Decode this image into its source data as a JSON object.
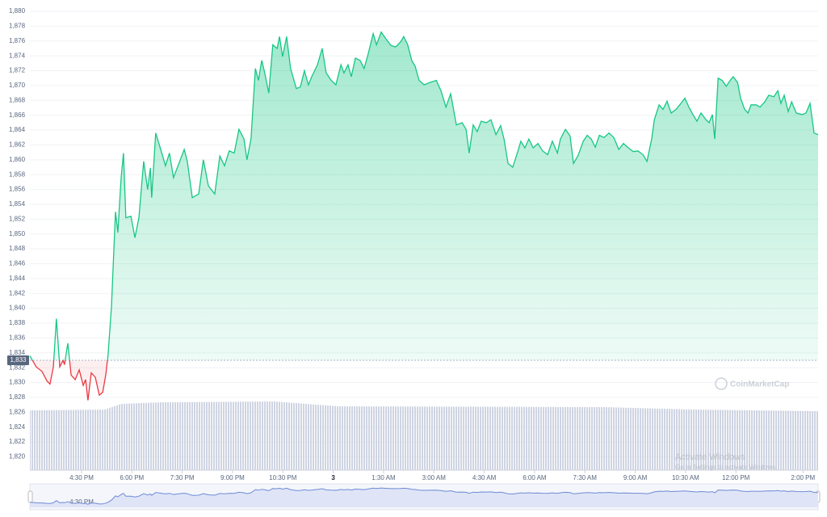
{
  "chart_data": {
    "type": "line",
    "x": [
      14.96,
      15.15,
      15.32,
      15.47,
      15.56,
      15.66,
      15.75,
      15.85,
      15.95,
      15.99,
      16.09,
      16.19,
      16.31,
      16.43,
      16.55,
      16.62,
      16.69,
      16.79,
      16.91,
      17.03,
      17.13,
      17.22,
      17.29,
      17.39,
      17.51,
      17.58,
      17.68,
      17.75,
      17.82,
      17.97,
      18.09,
      18.21,
      18.35,
      18.47,
      18.55,
      18.59,
      18.71,
      18.86,
      19.0,
      19.12,
      19.24,
      19.41,
      19.56,
      19.65,
      19.8,
      19.99,
      20.13,
      20.28,
      20.47,
      20.62,
      20.76,
      20.9,
      21.05,
      21.19,
      21.34,
      21.43,
      21.55,
      21.68,
      21.77,
      21.87,
      21.96,
      22.08,
      22.2,
      22.33,
      22.4,
      22.49,
      22.61,
      22.73,
      22.9,
      23.02,
      23.14,
      23.26,
      23.36,
      23.53,
      23.67,
      23.79,
      23.94,
      24.08,
      24.23,
      24.32,
      24.44,
      24.54,
      24.66,
      24.8,
      24.92,
      25.02,
      25.19,
      25.29,
      25.43,
      25.57,
      25.72,
      25.86,
      26.01,
      26.1,
      26.22,
      26.34,
      26.44,
      26.56,
      26.71,
      26.87,
      27.07,
      27.21,
      27.36,
      27.5,
      27.67,
      27.84,
      27.96,
      28.05,
      28.17,
      28.29,
      28.41,
      28.56,
      28.7,
      28.85,
      28.99,
      29.09,
      29.21,
      29.35,
      29.5,
      29.59,
      29.71,
      29.83,
      29.96,
      30.1,
      30.24,
      30.39,
      30.53,
      30.68,
      30.77,
      30.92,
      31.06,
      31.16,
      31.3,
      31.45,
      31.57,
      31.69,
      31.81,
      31.93,
      32.07,
      32.22,
      32.36,
      32.51,
      32.65,
      32.8,
      32.94,
      33.08,
      33.23,
      33.35,
      33.49,
      33.57,
      33.71,
      33.83,
      33.95,
      34.07,
      34.22,
      34.36,
      34.48,
      34.6,
      34.72,
      34.84,
      34.96,
      35.11,
      35.2,
      35.3,
      35.37,
      35.47,
      35.59,
      35.71,
      35.83,
      35.92,
      36.05,
      36.14,
      36.26,
      36.36,
      36.45,
      36.6,
      36.72,
      36.86,
      36.98,
      37.13,
      37.25,
      37.34,
      37.44,
      37.56,
      37.66,
      37.8,
      37.97,
      38.09,
      38.21,
      38.33,
      38.45
    ],
    "values": [
      1833.6,
      1832.1,
      1831.5,
      1830.2,
      1829.8,
      1832.1,
      1838.6,
      1832.1,
      1833.0,
      1832.4,
      1835.3,
      1831.0,
      1830.4,
      1831.7,
      1829.6,
      1830.4,
      1827.6,
      1831.3,
      1830.7,
      1828.3,
      1828.7,
      1831.0,
      1833.7,
      1840.2,
      1853.0,
      1850.2,
      1857.6,
      1860.9,
      1852.2,
      1852.4,
      1849.5,
      1852.2,
      1859.8,
      1856.0,
      1858.9,
      1854.9,
      1863.6,
      1861.4,
      1859.2,
      1860.9,
      1857.6,
      1859.6,
      1861.4,
      1859.8,
      1854.9,
      1855.4,
      1860.0,
      1856.5,
      1855.4,
      1860.5,
      1859.2,
      1861.2,
      1860.9,
      1864.1,
      1862.8,
      1860.0,
      1862.8,
      1872.3,
      1870.7,
      1873.4,
      1871.7,
      1869.0,
      1875.5,
      1875.0,
      1876.6,
      1873.9,
      1876.6,
      1872.3,
      1869.6,
      1869.8,
      1872.0,
      1870.1,
      1871.2,
      1872.8,
      1875.0,
      1871.7,
      1870.7,
      1870.1,
      1872.8,
      1871.7,
      1872.8,
      1871.2,
      1873.7,
      1873.4,
      1872.3,
      1873.9,
      1877.0,
      1875.5,
      1877.2,
      1876.3,
      1875.4,
      1875.2,
      1875.9,
      1876.6,
      1875.5,
      1873.4,
      1872.6,
      1870.7,
      1870.1,
      1870.4,
      1870.7,
      1869.3,
      1867.1,
      1868.9,
      1864.7,
      1865.0,
      1864.1,
      1860.9,
      1864.7,
      1863.8,
      1865.2,
      1865.0,
      1865.4,
      1863.4,
      1864.6,
      1862.8,
      1859.5,
      1859.0,
      1861.1,
      1862.5,
      1861.6,
      1862.8,
      1861.6,
      1862.2,
      1861.2,
      1860.7,
      1862.5,
      1860.9,
      1862.8,
      1864.1,
      1863.2,
      1859.5,
      1860.6,
      1862.5,
      1863.3,
      1862.8,
      1861.7,
      1863.3,
      1863.0,
      1863.6,
      1863.0,
      1861.4,
      1862.2,
      1861.6,
      1861.1,
      1861.2,
      1860.7,
      1859.8,
      1862.8,
      1865.4,
      1867.4,
      1866.8,
      1867.9,
      1866.3,
      1866.8,
      1867.6,
      1868.3,
      1867.1,
      1866.1,
      1865.2,
      1866.3,
      1865.4,
      1865.0,
      1866.1,
      1862.8,
      1871.0,
      1870.7,
      1869.9,
      1870.7,
      1871.2,
      1870.4,
      1868.3,
      1866.8,
      1866.3,
      1867.4,
      1867.4,
      1867.1,
      1867.8,
      1868.7,
      1868.5,
      1869.3,
      1867.6,
      1868.7,
      1866.5,
      1867.8,
      1866.3,
      1866.1,
      1866.3,
      1867.6,
      1863.6,
      1863.4
    ],
    "color_up": "#16c784",
    "color_down": "#ea3943",
    "baseline": {
      "value": 1833,
      "label": "1,833"
    },
    "xlim": [
      14.96,
      38.45
    ],
    "xticks": [
      {
        "value": 16.5,
        "label": "4:30 PM"
      },
      {
        "value": 18,
        "label": "6:00 PM"
      },
      {
        "value": 19.5,
        "label": "7:30 PM"
      },
      {
        "value": 21,
        "label": "9:00 PM"
      },
      {
        "value": 22.5,
        "label": "10:30 PM"
      },
      {
        "value": 24,
        "label": "3"
      },
      {
        "value": 25.5,
        "label": "1:30 AM"
      },
      {
        "value": 27,
        "label": "3:00 AM"
      },
      {
        "value": 28.5,
        "label": "4:30 AM"
      },
      {
        "value": 30,
        "label": "6:00 AM"
      },
      {
        "value": 31.5,
        "label": "7:30 AM"
      },
      {
        "value": 33,
        "label": "9:00 AM"
      },
      {
        "value": 34.5,
        "label": "10:30 AM"
      },
      {
        "value": 36,
        "label": "12:00 PM"
      },
      {
        "value": 38,
        "label": "2:00 PM"
      }
    ],
    "ylim": [
      1818.2,
      1880
    ],
    "yticks": [
      {
        "value": 1820,
        "label": "1,820"
      },
      {
        "value": 1822,
        "label": "1,822"
      },
      {
        "value": 1824,
        "label": "1,824"
      },
      {
        "value": 1826,
        "label": "1,826"
      },
      {
        "value": 1828,
        "label": "1,828"
      },
      {
        "value": 1830,
        "label": "1,830"
      },
      {
        "value": 1832,
        "label": "1,832"
      },
      {
        "value": 1834,
        "label": "1,834"
      },
      {
        "value": 1836,
        "label": "1,836"
      },
      {
        "value": 1838,
        "label": "1,838"
      },
      {
        "value": 1840,
        "label": "1,840"
      },
      {
        "value": 1842,
        "label": "1,842"
      },
      {
        "value": 1844,
        "label": "1,844"
      },
      {
        "value": 1846,
        "label": "1,846"
      },
      {
        "value": 1848,
        "label": "1,848"
      },
      {
        "value": 1850,
        "label": "1,850"
      },
      {
        "value": 1852,
        "label": "1,852"
      },
      {
        "value": 1854,
        "label": "1,854"
      },
      {
        "value": 1856,
        "label": "1,856"
      },
      {
        "value": 1858,
        "label": "1,858"
      },
      {
        "value": 1860,
        "label": "1,860"
      },
      {
        "value": 1862,
        "label": "1,862"
      },
      {
        "value": 1864,
        "label": "1,864"
      },
      {
        "value": 1866,
        "label": "1,866"
      },
      {
        "value": 1868,
        "label": "1,868"
      },
      {
        "value": 1870,
        "label": "1,870"
      },
      {
        "value": 1872,
        "label": "1,872"
      },
      {
        "value": 1874,
        "label": "1,874"
      },
      {
        "value": 1876,
        "label": "1,876"
      },
      {
        "value": 1878,
        "label": "1,878"
      },
      {
        "value": 1880,
        "label": "1,880"
      }
    ],
    "grid": true,
    "watermark": "CoinMarketCap"
  },
  "os_overlay": {
    "title": "Activate Windows",
    "subtitle": "Go to Settings to activate Windows."
  }
}
